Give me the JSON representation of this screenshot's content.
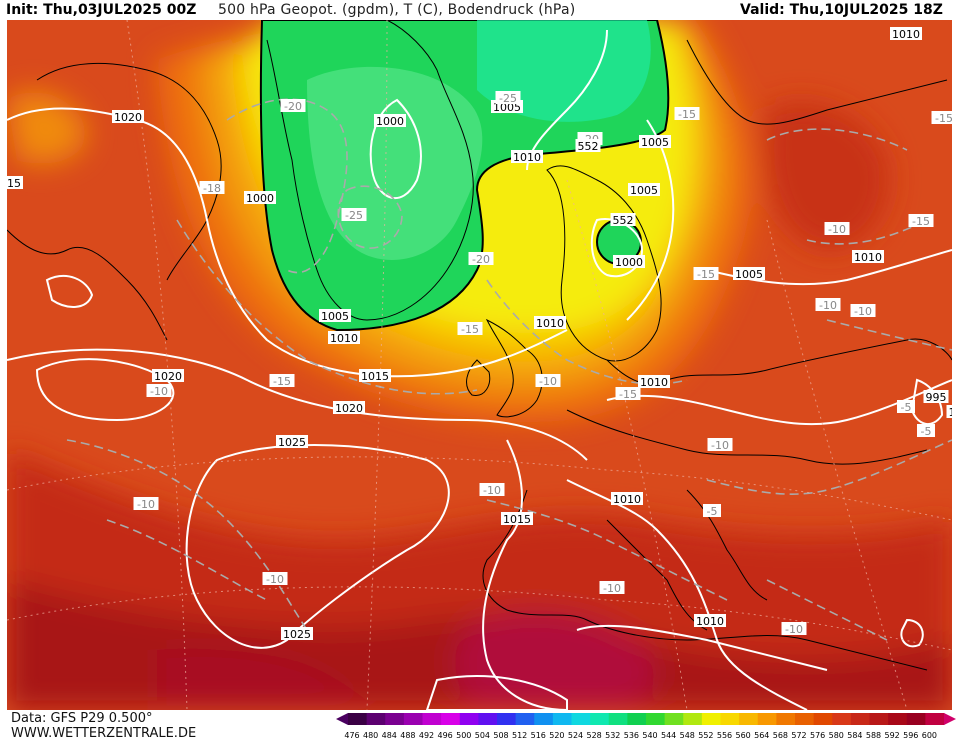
{
  "header": {
    "init": "Init: Thu,03JUL2025 00Z",
    "title": "500 hPa Geopot. (gpdm), T (C), Bodendruck (hPa)",
    "valid": "Valid: Thu,10JUL2025 18Z"
  },
  "footer": {
    "data_source": "Data: GFS P29 0.500°",
    "website": "WWW.WETTERZENTRALE.DE"
  },
  "scale": {
    "labels": [
      "476",
      "480",
      "484",
      "488",
      "492",
      "496",
      "500",
      "504",
      "508",
      "512",
      "516",
      "520",
      "524",
      "528",
      "532",
      "536",
      "540",
      "544",
      "548",
      "552",
      "556",
      "560",
      "564",
      "568",
      "572",
      "576",
      "580",
      "584",
      "588",
      "592",
      "596",
      "600"
    ],
    "colors": [
      "#3a0044",
      "#5c0070",
      "#7a0090",
      "#9a00b0",
      "#c000d0",
      "#d800e8",
      "#9000f0",
      "#6010f0",
      "#3030f0",
      "#2060f0",
      "#1090f0",
      "#10b8f0",
      "#10d8e0",
      "#10e8b0",
      "#10e080",
      "#10d050",
      "#30d830",
      "#70e020",
      "#b0e810",
      "#f0f000",
      "#f8d800",
      "#f8b800",
      "#f89800",
      "#f07800",
      "#e86000",
      "#e04800",
      "#d83818",
      "#c82818",
      "#b81818",
      "#a80818",
      "#980020",
      "#c00040"
    ],
    "low_arrow_color": "#4a0060",
    "high_arrow_color": "#d0006a"
  },
  "pressure_labels": [
    "1010",
    "1020",
    "1000",
    "1000",
    "1005",
    "1005",
    "1010",
    "1005",
    "1000",
    "1005",
    "1010",
    "1010",
    "1010",
    "1015",
    "1020",
    "1020",
    "1025",
    "1010",
    "1015",
    "1010",
    "1025",
    "1010",
    "1005",
    "995"
  ],
  "temperature_labels": [
    "-20",
    "-25",
    "-20",
    "-15",
    "-18",
    "-25",
    "-20",
    "-15",
    "-15",
    "-10",
    "-15",
    "-10",
    "-10",
    "-10",
    "-15",
    "-10",
    "-15",
    "-15",
    "-10",
    "-5",
    "-10",
    "-10",
    "-5",
    "-10",
    "-10",
    "-5",
    "-10"
  ],
  "height_labels": [
    "552",
    "552"
  ],
  "edge_labels": [
    "15",
    "1"
  ]
}
